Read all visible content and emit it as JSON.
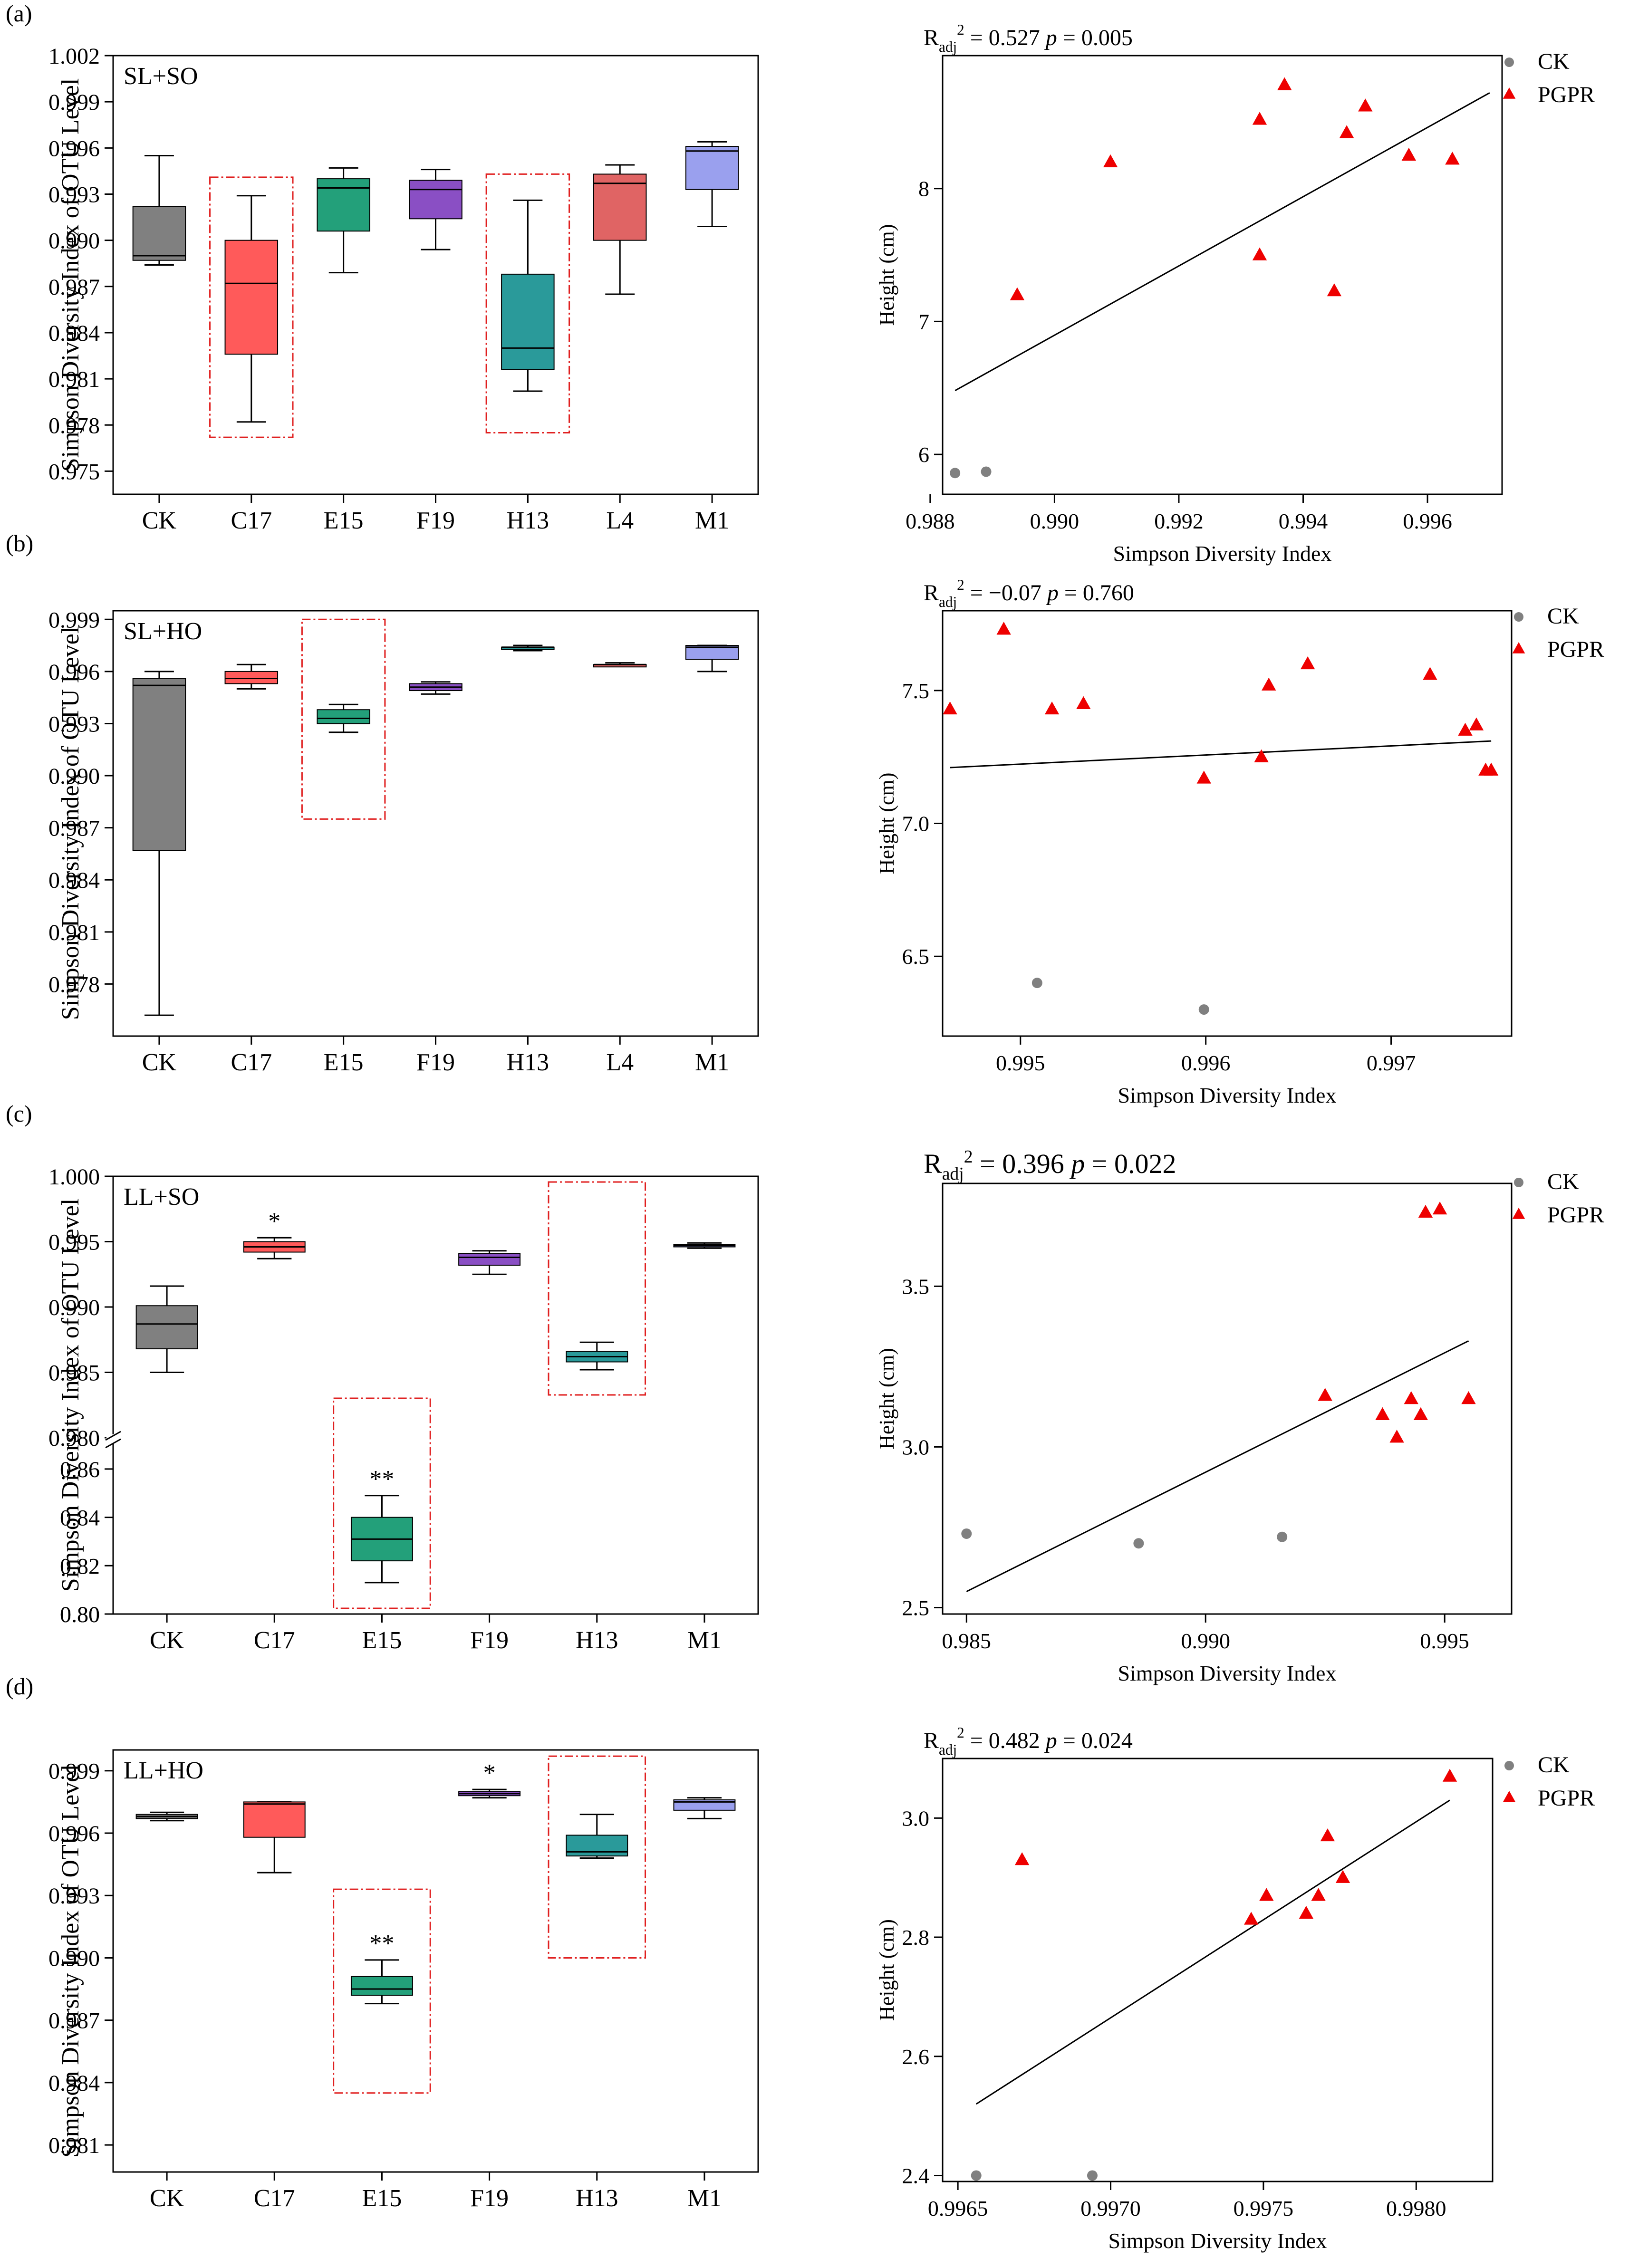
{
  "colors": {
    "CK": "#808080",
    "C17": "#ff5a5a",
    "E15": "#23a07a",
    "F19": "#8a4fc4",
    "H13": "#2a9a9a",
    "L4": "#e06464",
    "M1": "#9aa0ee",
    "highlight": "#e02020",
    "pgpr": "#ee0000",
    "ck_point": "#808080"
  },
  "chart_data": [
    {
      "panel": "(a)",
      "type": "box",
      "title": "SL+SO",
      "ylabel": "Simpson Diversity Index of OTU Level",
      "ylim": [
        0.9735,
        1.002
      ],
      "yticks": [
        "0.975",
        "0.978",
        "0.981",
        "0.984",
        "0.987",
        "0.990",
        "0.993",
        "0.996",
        "0.999",
        "1.002"
      ],
      "categories": [
        "CK",
        "C17",
        "E15",
        "F19",
        "H13",
        "L4",
        "M1"
      ],
      "boxes": [
        {
          "name": "CK",
          "min": 0.9884,
          "q1": 0.9887,
          "median": 0.989,
          "q3": 0.9922,
          "max": 0.9955
        },
        {
          "name": "C17",
          "min": 0.9782,
          "q1": 0.9826,
          "median": 0.9872,
          "q3": 0.99,
          "max": 0.9929
        },
        {
          "name": "E15",
          "min": 0.9879,
          "q1": 0.9906,
          "median": 0.9934,
          "q3": 0.994,
          "max": 0.9947
        },
        {
          "name": "F19",
          "min": 0.9894,
          "q1": 0.9914,
          "median": 0.9933,
          "q3": 0.9939,
          "max": 0.9946
        },
        {
          "name": "H13",
          "min": 0.9802,
          "q1": 0.9816,
          "median": 0.983,
          "q3": 0.9878,
          "max": 0.9926
        },
        {
          "name": "L4",
          "min": 0.9865,
          "q1": 0.99,
          "median": 0.9937,
          "q3": 0.9943,
          "max": 0.9949
        },
        {
          "name": "M1",
          "min": 0.9909,
          "q1": 0.9933,
          "median": 0.9958,
          "q3": 0.9961,
          "max": 0.9964
        }
      ],
      "highlights": [
        {
          "category": "C17",
          "from": 0.9772,
          "to": 0.9941
        },
        {
          "category": "H13",
          "from": 0.9775,
          "to": 0.9943
        }
      ]
    },
    {
      "panel": "(b)",
      "type": "box",
      "title": "SL+HO",
      "ylabel": "Simpson Diversity Index of OTU Level",
      "ylim": [
        0.975,
        0.9995
      ],
      "yticks": [
        "0.978",
        "0.981",
        "0.984",
        "0.987",
        "0.990",
        "0.993",
        "0.996",
        "0.999"
      ],
      "categories": [
        "CK",
        "C17",
        "E15",
        "F19",
        "H13",
        "L4",
        "M1"
      ],
      "boxes": [
        {
          "name": "CK",
          "min": 0.9762,
          "q1": 0.9857,
          "median": 0.9952,
          "q3": 0.9956,
          "max": 0.996
        },
        {
          "name": "C17",
          "min": 0.995,
          "q1": 0.9953,
          "median": 0.9956,
          "q3": 0.996,
          "max": 0.9964
        },
        {
          "name": "E15",
          "min": 0.9925,
          "q1": 0.993,
          "median": 0.9933,
          "q3": 0.9938,
          "max": 0.9941
        },
        {
          "name": "F19",
          "min": 0.9947,
          "q1": 0.9949,
          "median": 0.9951,
          "q3": 0.9953,
          "max": 0.9954
        },
        {
          "name": "H13",
          "min": 0.9972,
          "q1": 0.9973,
          "median": 0.9974,
          "q3": 0.9974,
          "max": 0.9975
        },
        {
          "name": "L4",
          "min": 0.9963,
          "q1": 0.9963,
          "median": 0.9964,
          "q3": 0.9964,
          "max": 0.9965
        },
        {
          "name": "M1",
          "min": 0.996,
          "q1": 0.9967,
          "median": 0.9974,
          "q3": 0.9975,
          "max": 0.9975
        }
      ],
      "highlights": [
        {
          "category": "E15",
          "from": 0.9875,
          "to": 0.999
        }
      ]
    },
    {
      "panel": "(c)",
      "type": "box",
      "title": "LL+SO",
      "ylabel": "Simpson Diversity Index of OTU Level",
      "broken_axis": true,
      "upper_ylim": [
        0.98,
        1.0
      ],
      "lower_ylim": [
        0.8,
        0.87
      ],
      "upper_ticks": [
        "0.980",
        "0.985",
        "0.990",
        "0.995",
        "1.000"
      ],
      "lower_ticks": [
        "0.80",
        "0.82",
        "0.84",
        "0.86"
      ],
      "categories": [
        "CK",
        "C17",
        "E15",
        "F19",
        "H13",
        "M1"
      ],
      "boxes": [
        {
          "name": "CK",
          "min": 0.985,
          "q1": 0.9868,
          "median": 0.9887,
          "q3": 0.9901,
          "max": 0.9916
        },
        {
          "name": "C17",
          "min": 0.9937,
          "q1": 0.9942,
          "median": 0.9946,
          "q3": 0.995,
          "max": 0.9953,
          "label": "*"
        },
        {
          "name": "E15",
          "min": 0.813,
          "q1": 0.822,
          "median": 0.831,
          "q3": 0.84,
          "max": 0.849,
          "label": "**"
        },
        {
          "name": "F19",
          "min": 0.9925,
          "q1": 0.9932,
          "median": 0.9938,
          "q3": 0.9941,
          "max": 0.9943
        },
        {
          "name": "H13",
          "min": 0.9852,
          "q1": 0.9858,
          "median": 0.9862,
          "q3": 0.9866,
          "max": 0.9873
        },
        {
          "name": "M1",
          "min": 0.9945,
          "q1": 0.9946,
          "median": 0.9947,
          "q3": 0.9948,
          "max": 0.9949
        }
      ],
      "highlights": [
        {
          "category": "E15",
          "region": "lower"
        },
        {
          "category": "H13",
          "region": "upper"
        }
      ]
    },
    {
      "panel": "(d)",
      "type": "box",
      "title": "LL+HO",
      "ylabel": "Simpson Diversity Index of OTU Level",
      "ylim": [
        0.9797,
        1.0
      ],
      "yticks": [
        "0.981",
        "0.984",
        "0.987",
        "0.990",
        "0.993",
        "0.996",
        "0.999"
      ],
      "categories": [
        "CK",
        "C17",
        "E15",
        "F19",
        "H13",
        "M1"
      ],
      "boxes": [
        {
          "name": "CK",
          "min": 0.9966,
          "q1": 0.9967,
          "median": 0.9968,
          "q3": 0.9969,
          "max": 0.997
        },
        {
          "name": "C17",
          "min": 0.9941,
          "q1": 0.9958,
          "median": 0.9974,
          "q3": 0.9975,
          "max": 0.9975
        },
        {
          "name": "E15",
          "min": 0.9878,
          "q1": 0.9882,
          "median": 0.9885,
          "q3": 0.9891,
          "max": 0.9899,
          "label": "**"
        },
        {
          "name": "F19",
          "min": 0.9977,
          "q1": 0.9978,
          "median": 0.9979,
          "q3": 0.998,
          "max": 0.9981,
          "label": "*"
        },
        {
          "name": "H13",
          "min": 0.9948,
          "q1": 0.9949,
          "median": 0.9951,
          "q3": 0.9959,
          "max": 0.9969
        },
        {
          "name": "M1",
          "min": 0.9967,
          "q1": 0.9971,
          "median": 0.9975,
          "q3": 0.9976,
          "max": 0.9977
        }
      ],
      "highlights": [
        {
          "category": "E15",
          "from": 0.9835,
          "to": 0.9933
        },
        {
          "category": "H13",
          "from": 0.99,
          "to": 0.9997
        }
      ]
    },
    {
      "panel": "(a)",
      "type": "scatter",
      "stats": {
        "r_label": "R",
        "r_sub": "adj",
        "r_sup": "2",
        "r_value": "= 0.527",
        "p_label": "p",
        "p_value": "=  0.005"
      },
      "xlabel": "Simpson Diversity Index",
      "ylabel": "Height (cm)",
      "xlim": [
        0.9882,
        0.9972
      ],
      "ylim": [
        5.7,
        9.0
      ],
      "xticks": [
        "0.988",
        "0.990",
        "0.992",
        "0.994",
        "0.996"
      ],
      "yticks": [
        "6",
        "7",
        "8"
      ],
      "legend": [
        "CK",
        "PGPR"
      ],
      "ck": [
        [
          0.9884,
          5.86
        ],
        [
          0.9889,
          5.87
        ]
      ],
      "pgpr": [
        [
          0.9894,
          7.2
        ],
        [
          0.9909,
          8.2
        ],
        [
          0.9933,
          7.5
        ],
        [
          0.9933,
          8.52
        ],
        [
          0.9937,
          8.78
        ],
        [
          0.9945,
          7.23
        ],
        [
          0.9947,
          8.42
        ],
        [
          0.995,
          8.62
        ],
        [
          0.9957,
          8.25
        ],
        [
          0.9964,
          8.22
        ]
      ],
      "fit": [
        [
          0.9884,
          6.48
        ],
        [
          0.997,
          8.72
        ]
      ]
    },
    {
      "panel": "(b)",
      "type": "scatter",
      "stats": {
        "r_label": "R",
        "r_sub": "adj",
        "r_sup": "2",
        "r_value": "= −0.07",
        "p_label": "p",
        "p_value": "=  0.760"
      },
      "xlabel": "Simpson Diversity Index",
      "ylabel": "Height (cm)",
      "xlim": [
        0.99458,
        0.99765
      ],
      "ylim": [
        6.2,
        7.8
      ],
      "xticks": [
        "0.995",
        "0.996",
        "0.997"
      ],
      "yticks": [
        "6.5",
        "7.0",
        "7.5"
      ],
      "legend": [
        "CK",
        "PGPR"
      ],
      "ck": [
        [
          0.99509,
          6.4
        ],
        [
          0.99599,
          6.3
        ]
      ],
      "pgpr": [
        [
          0.99462,
          7.43
        ],
        [
          0.99491,
          7.73
        ],
        [
          0.99517,
          7.43
        ],
        [
          0.99534,
          7.45
        ],
        [
          0.99599,
          7.17
        ],
        [
          0.9963,
          7.25
        ],
        [
          0.99634,
          7.52
        ],
        [
          0.99655,
          7.6
        ],
        [
          0.99721,
          7.56
        ],
        [
          0.9974,
          7.35
        ],
        [
          0.99746,
          7.37
        ],
        [
          0.99751,
          7.2
        ],
        [
          0.99754,
          7.2
        ]
      ],
      "fit": [
        [
          0.99462,
          7.21
        ],
        [
          0.99754,
          7.31
        ]
      ]
    },
    {
      "panel": "(c)",
      "type": "scatter",
      "stats": {
        "r_label": "R",
        "r_sub": "adj",
        "r_sup": "2",
        "r_value": "= 0.396",
        "p_label": "p",
        "p_value": "=  0.022"
      },
      "xlabel": "Simpson Diversity Index",
      "ylabel": "Height (cm)",
      "xlim": [
        0.9845,
        0.9964
      ],
      "ylim": [
        2.48,
        3.82
      ],
      "xticks": [
        "0.985",
        "0.990",
        "0.995"
      ],
      "yticks": [
        "2.5",
        "3.0",
        "3.5"
      ],
      "legend": [
        "CK",
        "PGPR"
      ],
      "ck": [
        [
          0.985,
          2.73
        ],
        [
          0.9886,
          2.7
        ],
        [
          0.9916,
          2.72
        ]
      ],
      "pgpr": [
        [
          0.9925,
          3.16
        ],
        [
          0.9937,
          3.1
        ],
        [
          0.994,
          3.03
        ],
        [
          0.9943,
          3.15
        ],
        [
          0.9945,
          3.1
        ],
        [
          0.9946,
          3.73
        ],
        [
          0.9949,
          3.74
        ],
        [
          0.9955,
          3.15
        ]
      ],
      "fit": [
        [
          0.985,
          2.55
        ],
        [
          0.9955,
          3.33
        ]
      ]
    },
    {
      "panel": "(d)",
      "type": "scatter",
      "stats": {
        "r_label": "R",
        "r_sub": "adj",
        "r_sup": "2",
        "r_value": "= 0.482",
        "p_label": "p",
        "p_value": "=  0.024"
      },
      "xlabel": "Simpson Diversity Index",
      "ylabel": "Height (cm)",
      "xlim": [
        0.99645,
        0.99825
      ],
      "ylim": [
        2.39,
        3.1
      ],
      "xticks": [
        "0.9965",
        "0.9970",
        "0.9975",
        "0.9980"
      ],
      "yticks": [
        "2.4",
        "2.6",
        "2.8",
        "3.0"
      ],
      "legend": [
        "CK",
        "PGPR"
      ],
      "ck": [
        [
          0.99656,
          2.4
        ],
        [
          0.99694,
          2.4
        ]
      ],
      "pgpr": [
        [
          0.99671,
          2.93
        ],
        [
          0.99746,
          2.83
        ],
        [
          0.99751,
          2.87
        ],
        [
          0.99764,
          2.84
        ],
        [
          0.99768,
          2.87
        ],
        [
          0.99771,
          2.97
        ],
        [
          0.99776,
          2.9
        ],
        [
          0.99811,
          3.07
        ]
      ],
      "fit": [
        [
          0.99656,
          2.52
        ],
        [
          0.99811,
          3.03
        ]
      ]
    }
  ]
}
